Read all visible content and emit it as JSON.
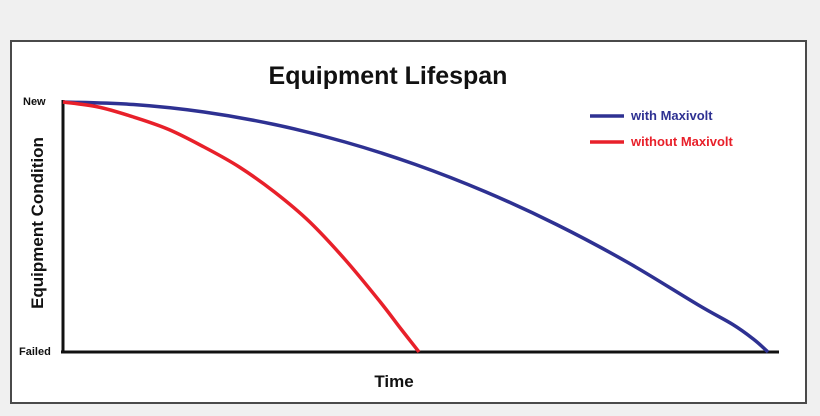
{
  "chart_data": {
    "type": "line",
    "title": "Equipment Lifespan",
    "xlabel": "Time",
    "ylabel": "Equipment Condition",
    "y_ticks": [
      "New",
      "Failed"
    ],
    "x_ticks": [],
    "xlim": [
      0,
      100
    ],
    "ylim": [
      0,
      1
    ],
    "grid": false,
    "legend_position": "top-right",
    "series": [
      {
        "name": "with Maxivolt",
        "color": "#2e3192",
        "x": [
          0,
          10,
          20,
          30,
          40,
          50,
          60,
          70,
          80,
          90,
          95,
          98,
          100
        ],
        "y": [
          1.0,
          0.99,
          0.96,
          0.91,
          0.84,
          0.75,
          0.64,
          0.51,
          0.36,
          0.19,
          0.11,
          0.05,
          0.0
        ]
      },
      {
        "name": "without Maxivolt",
        "color": "#e8202a",
        "x": [
          0,
          5,
          10,
          15,
          20,
          25,
          30,
          35,
          40,
          45,
          48,
          50.5
        ],
        "y": [
          1.0,
          0.98,
          0.94,
          0.89,
          0.82,
          0.74,
          0.64,
          0.52,
          0.37,
          0.2,
          0.09,
          0.0
        ]
      }
    ]
  }
}
